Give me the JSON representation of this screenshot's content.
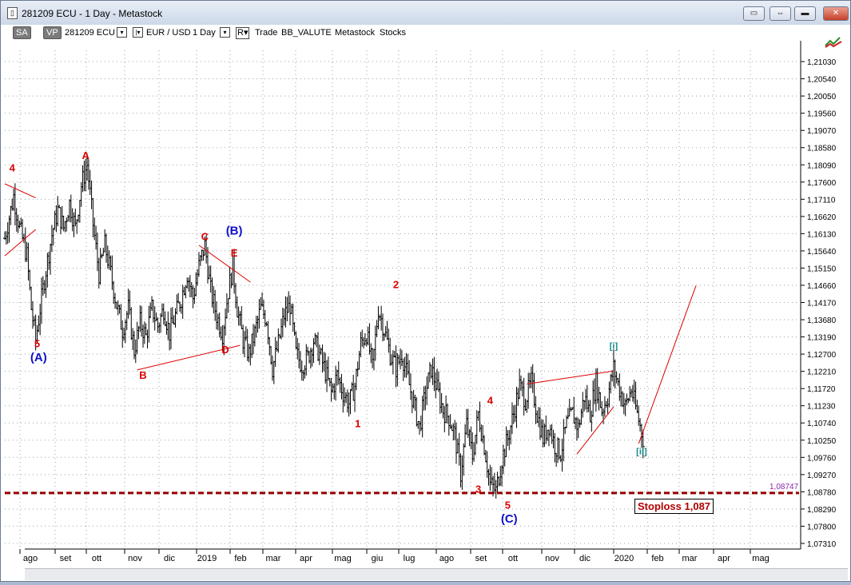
{
  "window": {
    "title": "281209 ECU - 1 Day - Metastock",
    "icon": "document-icon",
    "buttons": {
      "settings": "settings-icon",
      "restore": "restore-icon",
      "minimize": "minimize-icon",
      "maximize": "maximize-icon",
      "close": "close-icon"
    }
  },
  "toolbar": {
    "sa": "SA",
    "vp": "VP",
    "symbol": "281209 ECU",
    "pair": "EUR / USD",
    "period": "1 Day",
    "r": "R",
    "trade": "Trade",
    "value": "BB_VALUTE",
    "source": "Metastock",
    "type": "Stocks",
    "indicator_icon": "chart-indicator-icon"
  },
  "stoploss": {
    "label": "Stoploss 1,087",
    "value": "1,08747",
    "level": 1.08747,
    "color": "#990000"
  },
  "chart_data": {
    "type": "ohlc",
    "x_months": [
      "ago",
      "set",
      "ott",
      "nov",
      "dic",
      "2019",
      "feb",
      "mar",
      "apr",
      "mag",
      "giu",
      "lug",
      "ago",
      "set",
      "ott",
      "nov",
      "dic",
      "2020",
      "feb",
      "mar",
      "apr",
      "mag"
    ],
    "y_ticks": [
      "1,21030",
      "1,20540",
      "1,20050",
      "1,19560",
      "1,19070",
      "1,18580",
      "1,18090",
      "1,17600",
      "1,17110",
      "1,16620",
      "1,16130",
      "1,15640",
      "1,15150",
      "1,14660",
      "1,14170",
      "1,13680",
      "1,13190",
      "1,12700",
      "1,12210",
      "1,11720",
      "1,11230",
      "1,10740",
      "1,10250",
      "1,09760",
      "1,09270",
      "1,08780",
      "1,08290",
      "1,07800",
      "1,07310"
    ],
    "ylim": [
      1.0715,
      1.2135
    ],
    "series": [
      {
        "values": [
          {
            "t": 0,
            "c": 1.16
          },
          {
            "t": 6,
            "c": 1.172
          },
          {
            "t": 10,
            "c": 1.163
          },
          {
            "t": 15,
            "c": 1.155
          },
          {
            "t": 18,
            "c": 1.14
          },
          {
            "t": 21,
            "c": 1.131
          },
          {
            "t": 24,
            "c": 1.14
          },
          {
            "t": 28,
            "c": 1.151
          },
          {
            "t": 32,
            "c": 1.161
          },
          {
            "t": 36,
            "c": 1.168
          },
          {
            "t": 40,
            "c": 1.163
          },
          {
            "t": 44,
            "c": 1.17
          },
          {
            "t": 48,
            "c": 1.163
          },
          {
            "t": 52,
            "c": 1.175
          },
          {
            "t": 56,
            "c": 1.181
          },
          {
            "t": 60,
            "c": 1.164
          },
          {
            "t": 64,
            "c": 1.15
          },
          {
            "t": 68,
            "c": 1.158
          },
          {
            "t": 72,
            "c": 1.15
          },
          {
            "t": 76,
            "c": 1.141
          },
          {
            "t": 80,
            "c": 1.134
          },
          {
            "t": 84,
            "c": 1.14
          },
          {
            "t": 88,
            "c": 1.128
          },
          {
            "t": 92,
            "c": 1.136
          },
          {
            "t": 96,
            "c": 1.132
          },
          {
            "t": 100,
            "c": 1.14
          },
          {
            "t": 104,
            "c": 1.135
          },
          {
            "t": 108,
            "c": 1.14
          },
          {
            "t": 112,
            "c": 1.133
          },
          {
            "t": 116,
            "c": 1.138
          },
          {
            "t": 120,
            "c": 1.143
          },
          {
            "t": 124,
            "c": 1.15
          },
          {
            "t": 128,
            "c": 1.143
          },
          {
            "t": 132,
            "c": 1.152
          },
          {
            "t": 136,
            "c": 1.158
          },
          {
            "t": 140,
            "c": 1.145
          },
          {
            "t": 144,
            "c": 1.138
          },
          {
            "t": 148,
            "c": 1.133
          },
          {
            "t": 152,
            "c": 1.145
          },
          {
            "t": 155,
            "c": 1.152
          },
          {
            "t": 158,
            "c": 1.14
          },
          {
            "t": 162,
            "c": 1.131
          },
          {
            "t": 166,
            "c": 1.127
          },
          {
            "t": 170,
            "c": 1.133
          },
          {
            "t": 174,
            "c": 1.14
          },
          {
            "t": 178,
            "c": 1.137
          },
          {
            "t": 182,
            "c": 1.123
          },
          {
            "t": 186,
            "c": 1.13
          },
          {
            "t": 190,
            "c": 1.138
          },
          {
            "t": 194,
            "c": 1.141
          },
          {
            "t": 198,
            "c": 1.127
          },
          {
            "t": 202,
            "c": 1.124
          },
          {
            "t": 206,
            "c": 1.126
          },
          {
            "t": 210,
            "c": 1.131
          },
          {
            "t": 214,
            "c": 1.127
          },
          {
            "t": 218,
            "c": 1.122
          },
          {
            "t": 222,
            "c": 1.116
          },
          {
            "t": 226,
            "c": 1.121
          },
          {
            "t": 230,
            "c": 1.116
          },
          {
            "t": 234,
            "c": 1.113
          },
          {
            "t": 238,
            "c": 1.118
          },
          {
            "t": 242,
            "c": 1.13
          },
          {
            "t": 246,
            "c": 1.133
          },
          {
            "t": 250,
            "c": 1.123
          },
          {
            "t": 254,
            "c": 1.14
          },
          {
            "t": 258,
            "c": 1.134
          },
          {
            "t": 262,
            "c": 1.127
          },
          {
            "t": 266,
            "c": 1.123
          },
          {
            "t": 270,
            "c": 1.127
          },
          {
            "t": 274,
            "c": 1.12
          },
          {
            "t": 278,
            "c": 1.113
          },
          {
            "t": 282,
            "c": 1.106
          },
          {
            "t": 286,
            "c": 1.116
          },
          {
            "t": 290,
            "c": 1.123
          },
          {
            "t": 294,
            "c": 1.117
          },
          {
            "t": 298,
            "c": 1.111
          },
          {
            "t": 302,
            "c": 1.109
          },
          {
            "t": 306,
            "c": 1.104
          },
          {
            "t": 310,
            "c": 1.093
          },
          {
            "t": 314,
            "c": 1.107
          },
          {
            "t": 318,
            "c": 1.098
          },
          {
            "t": 322,
            "c": 1.11
          },
          {
            "t": 326,
            "c": 1.101
          },
          {
            "t": 330,
            "c": 1.09
          },
          {
            "t": 334,
            "c": 1.088
          },
          {
            "t": 338,
            "c": 1.097
          },
          {
            "t": 342,
            "c": 1.103
          },
          {
            "t": 346,
            "c": 1.11
          },
          {
            "t": 350,
            "c": 1.118
          },
          {
            "t": 354,
            "c": 1.114
          },
          {
            "t": 358,
            "c": 1.119
          },
          {
            "t": 362,
            "c": 1.11
          },
          {
            "t": 366,
            "c": 1.103
          },
          {
            "t": 370,
            "c": 1.107
          },
          {
            "t": 374,
            "c": 1.101
          },
          {
            "t": 378,
            "c": 1.099
          },
          {
            "t": 382,
            "c": 1.107
          },
          {
            "t": 386,
            "c": 1.11
          },
          {
            "t": 390,
            "c": 1.106
          },
          {
            "t": 394,
            "c": 1.115
          },
          {
            "t": 398,
            "c": 1.11
          },
          {
            "t": 402,
            "c": 1.119
          },
          {
            "t": 406,
            "c": 1.111
          },
          {
            "t": 410,
            "c": 1.115
          },
          {
            "t": 414,
            "c": 1.123
          },
          {
            "t": 418,
            "c": 1.117
          },
          {
            "t": 422,
            "c": 1.112
          },
          {
            "t": 426,
            "c": 1.117
          },
          {
            "t": 430,
            "c": 1.11
          },
          {
            "t": 434,
            "c": 1.103
          }
        ]
      }
    ],
    "annotations": [
      {
        "text": "4",
        "color": "#dd0000",
        "t": 5,
        "y": 1.179
      },
      {
        "text": "5",
        "color": "#dd0000",
        "t": 22,
        "y": 1.129
      },
      {
        "text": "(A)",
        "color": "#1010c8",
        "t": 23,
        "y": 1.125
      },
      {
        "text": "A",
        "color": "#dd0000",
        "t": 55,
        "y": 1.1825
      },
      {
        "text": "B",
        "color": "#dd0000",
        "t": 94,
        "y": 1.12
      },
      {
        "text": "C",
        "color": "#dd0000",
        "t": 136,
        "y": 1.1595
      },
      {
        "text": "(B)",
        "color": "#1010c8",
        "t": 156,
        "y": 1.161
      },
      {
        "text": "E",
        "color": "#dd0000",
        "t": 156,
        "y": 1.1548
      },
      {
        "text": "D",
        "color": "#dd0000",
        "t": 150,
        "y": 1.1273
      },
      {
        "text": "2",
        "color": "#dd0000",
        "t": 266,
        "y": 1.1458
      },
      {
        "text": "1",
        "color": "#dd0000",
        "t": 240,
        "y": 1.1062
      },
      {
        "text": "4",
        "color": "#dd0000",
        "t": 330,
        "y": 1.1128
      },
      {
        "text": "3",
        "color": "#dd0000",
        "t": 322,
        "y": 1.0875
      },
      {
        "text": "5",
        "color": "#dd0000",
        "t": 342,
        "y": 1.083
      },
      {
        "text": "(C)",
        "color": "#1010c8",
        "t": 343,
        "y": 1.079
      },
      {
        "text": "[i]",
        "color": "#138a8a",
        "t": 414,
        "y": 1.1285
      },
      {
        "text": "[ii]",
        "color": "#138a8a",
        "t": 433,
        "y": 1.0985
      }
    ],
    "trendlines": [
      {
        "color": "#dd0000",
        "points": [
          [
            0,
            1.1755
          ],
          [
            21,
            1.1715
          ]
        ]
      },
      {
        "color": "#dd0000",
        "points": [
          [
            0,
            1.155
          ],
          [
            21,
            1.1625
          ]
        ]
      },
      {
        "color": "#dd0000",
        "points": [
          [
            90,
            1.1225
          ],
          [
            160,
            1.1295
          ]
        ]
      },
      {
        "color": "#dd0000",
        "points": [
          [
            132,
            1.158
          ],
          [
            167,
            1.1475
          ]
        ]
      },
      {
        "color": "#dd0000",
        "points": [
          [
            355,
            1.1185
          ],
          [
            414,
            1.1222
          ]
        ]
      },
      {
        "color": "#dd0000",
        "points": [
          [
            389,
            1.0985
          ],
          [
            414,
            1.112
          ]
        ]
      },
      {
        "color": "#dd0000",
        "points": [
          [
            431,
            1.1015
          ],
          [
            470,
            1.1465
          ]
        ]
      }
    ],
    "grid": true,
    "legend": "none"
  }
}
